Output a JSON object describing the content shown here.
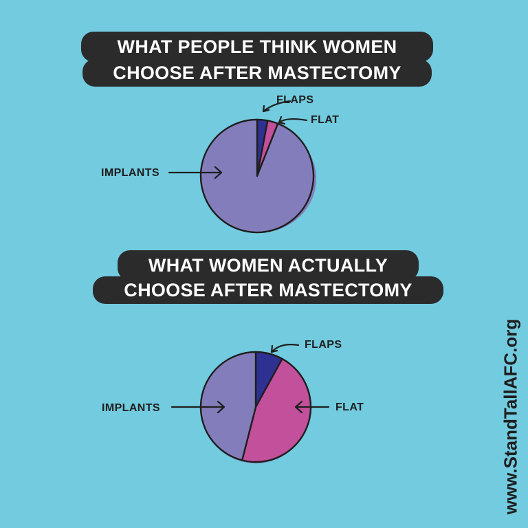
{
  "chart_data": [
    {
      "type": "pie",
      "title_lines": [
        "WHAT PEOPLE THINK WOMEN",
        "CHOOSE AFTER MASTECTOMY"
      ],
      "slices": [
        {
          "label": "FLAPS",
          "value": 3,
          "color": "#2e3192"
        },
        {
          "label": "FLAT",
          "value": 3,
          "color": "#c2509a"
        },
        {
          "label": "IMPLANTS",
          "value": 94,
          "color": "#837ebb"
        }
      ]
    },
    {
      "type": "pie",
      "title_lines": [
        "WHAT WOMEN ACTUALLY",
        "CHOOSE AFTER MASTECTOMY"
      ],
      "slices": [
        {
          "label": "FLAPS",
          "value": 8,
          "color": "#2e3192"
        },
        {
          "label": "FLAT",
          "value": 46,
          "color": "#c2509a"
        },
        {
          "label": "IMPLANTS",
          "value": 46,
          "color": "#837ebb"
        }
      ]
    }
  ],
  "website": "www.StandTallAFC.org",
  "colors": {
    "background": "#72cbdf",
    "banner": "#2b2b2b",
    "ink": "#1e1e1e"
  }
}
